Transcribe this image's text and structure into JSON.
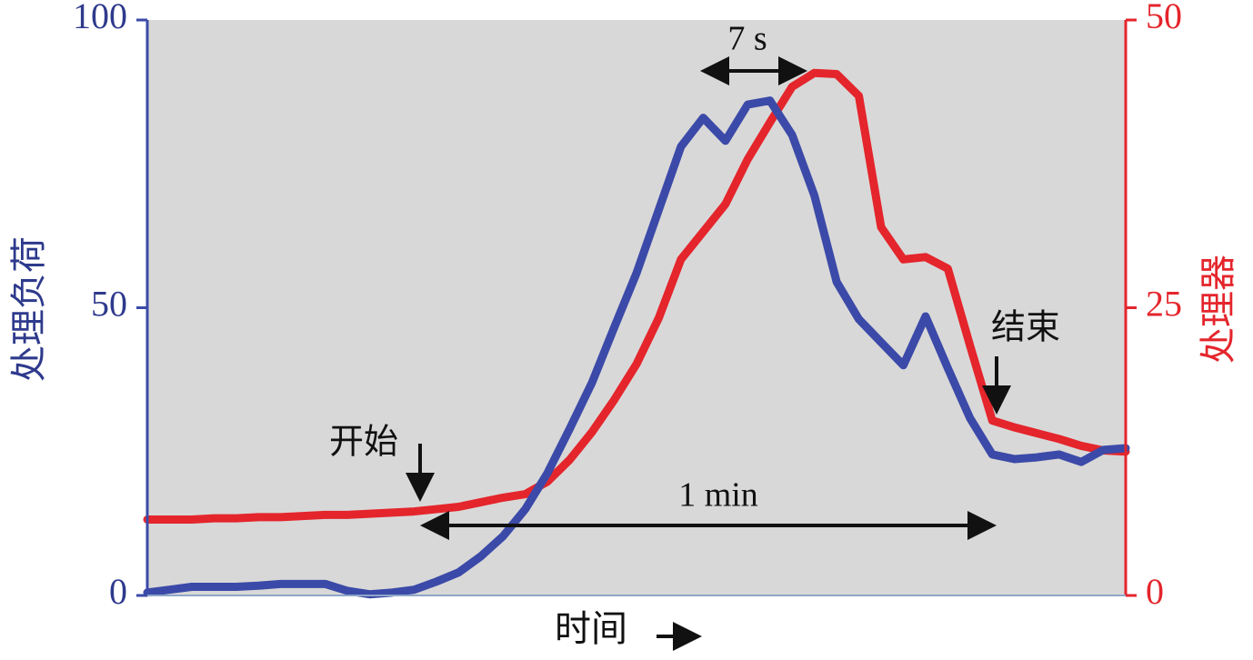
{
  "chart_data": {
    "type": "line",
    "xlabel": "时间",
    "ylabel": "处理负荷",
    "y2label": "处理器",
    "annotations": [
      "7 s",
      "1 min",
      "开始",
      "结束"
    ],
    "categories": [
      null,
      null,
      null,
      null,
      null,
      null,
      null,
      null,
      null,
      null,
      null,
      null,
      null,
      null,
      null,
      null,
      null,
      null,
      null,
      null,
      null,
      null,
      null,
      null,
      null,
      null,
      null,
      null,
      null,
      null,
      null,
      null,
      null,
      null,
      null,
      null,
      null,
      null,
      null,
      null,
      null,
      null,
      null,
      null,
      null
    ],
    "ylim": [
      0,
      100
    ],
    "yticks": [
      0,
      50,
      100
    ],
    "y2lim": [
      0,
      50
    ],
    "y2ticks": [
      0,
      25,
      50
    ],
    "series": [
      {
        "name": "处理负荷",
        "color": "#3b4aa8",
        "axis": "y",
        "values": [
          0.5,
          1,
          1.5,
          1.5,
          1.5,
          1.7,
          2,
          2,
          2,
          0.8,
          0.2,
          0.5,
          1,
          2.4,
          4,
          6.8,
          10.3,
          15,
          21.3,
          29,
          37,
          46.6,
          56,
          67,
          78,
          83,
          79,
          85.3,
          86,
          80,
          69.5,
          54.5,
          48,
          44,
          40,
          48.5,
          39.5,
          30.8,
          24.5,
          23.7,
          24,
          24.5,
          23.2,
          25.3,
          25.6
        ]
      },
      {
        "name": "处理器",
        "color": "#e4252c",
        "axis": "y2",
        "values": [
          6.6,
          6.6,
          6.6,
          6.7,
          6.7,
          6.8,
          6.8,
          6.9,
          7.0,
          7.0,
          7.1,
          7.2,
          7.3,
          7.5,
          7.7,
          8.1,
          8.5,
          8.8,
          9.9,
          11.8,
          14.2,
          17,
          20.1,
          24.1,
          29.2,
          31.6,
          34,
          37.9,
          41.1,
          44.2,
          45.4,
          45.3,
          43.4,
          32,
          29.2,
          29.4,
          28.4,
          21.7,
          15.2,
          14.6,
          14.1,
          13.6,
          13,
          12.6,
          12.5
        ]
      }
    ]
  }
}
